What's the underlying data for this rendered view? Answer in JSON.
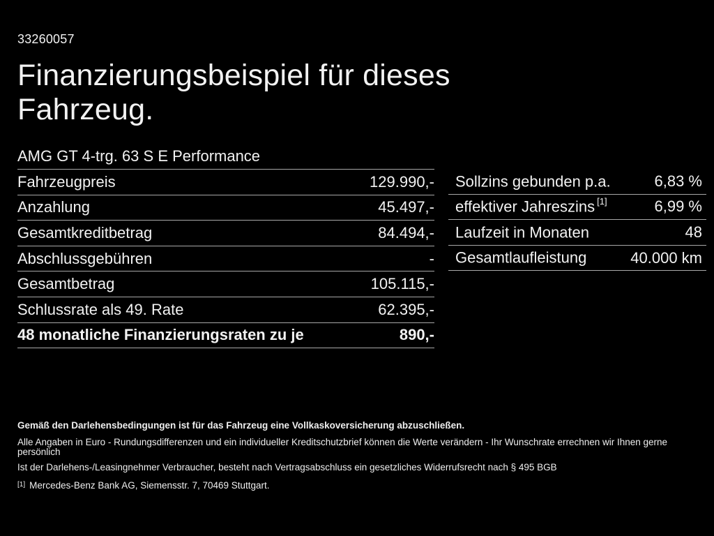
{
  "header": {
    "vehicle_id": "33260057",
    "title_line1": "Finanzierungsbeispiel für dieses",
    "title_line2": "Fahrzeug.",
    "vehicle_model": "AMG GT 4-trg. 63 S E Performance"
  },
  "finance_table": {
    "rows": [
      {
        "label": "Fahrzeugpreis",
        "value": "129.990,-"
      },
      {
        "label": "Anzahlung",
        "value": "45.497,-"
      },
      {
        "label": "Gesamtkreditbetrag",
        "value": "84.494,-"
      },
      {
        "label": "Abschlussgebühren",
        "value": "-"
      },
      {
        "label": "Gesamtbetrag",
        "value": "105.115,-"
      },
      {
        "label": "Schlussrate als 49. Rate",
        "value": "62.395,-"
      },
      {
        "label": "48 monatliche Finanzierungsraten zu je",
        "value": "890,-"
      }
    ]
  },
  "conditions_table": {
    "rows": [
      {
        "label": "Sollzins gebunden p.a.",
        "sup": "",
        "value": "6,83 %"
      },
      {
        "label": "effektiver Jahreszins",
        "sup": "[1]",
        "value": "6,99 %"
      },
      {
        "label": "Laufzeit in Monaten",
        "sup": "",
        "value": "48"
      },
      {
        "label": "Gesamtlaufleistung",
        "sup": "",
        "value": "40.000 km"
      }
    ]
  },
  "footer": {
    "insurance_note": "Gemäß den Darlehensbedingungen ist für das Fahrzeug eine Vollkaskoversicherung abzuschließen.",
    "disclaimer1": "Alle Angaben in Euro - Rundungsdifferenzen und ein individueller Kreditschutzbrief können die Werte verändern - Ihr Wunschrate errechnen wir Ihnen gerne persönlich",
    "disclaimer2": "Ist der Darlehens-/Leasingnehmer Verbraucher, besteht nach Vertragsabschluss ein gesetzliches Widerrufsrecht nach § 495 BGB",
    "footnote_marker": "[1]",
    "footnote_text": "Mercedes-Benz Bank AG, Siemensstr. 7, 70469 Stuttgart."
  },
  "colors": {
    "background": "#000000",
    "text": "#f2f2f2",
    "divider": "#a9a9a9"
  }
}
